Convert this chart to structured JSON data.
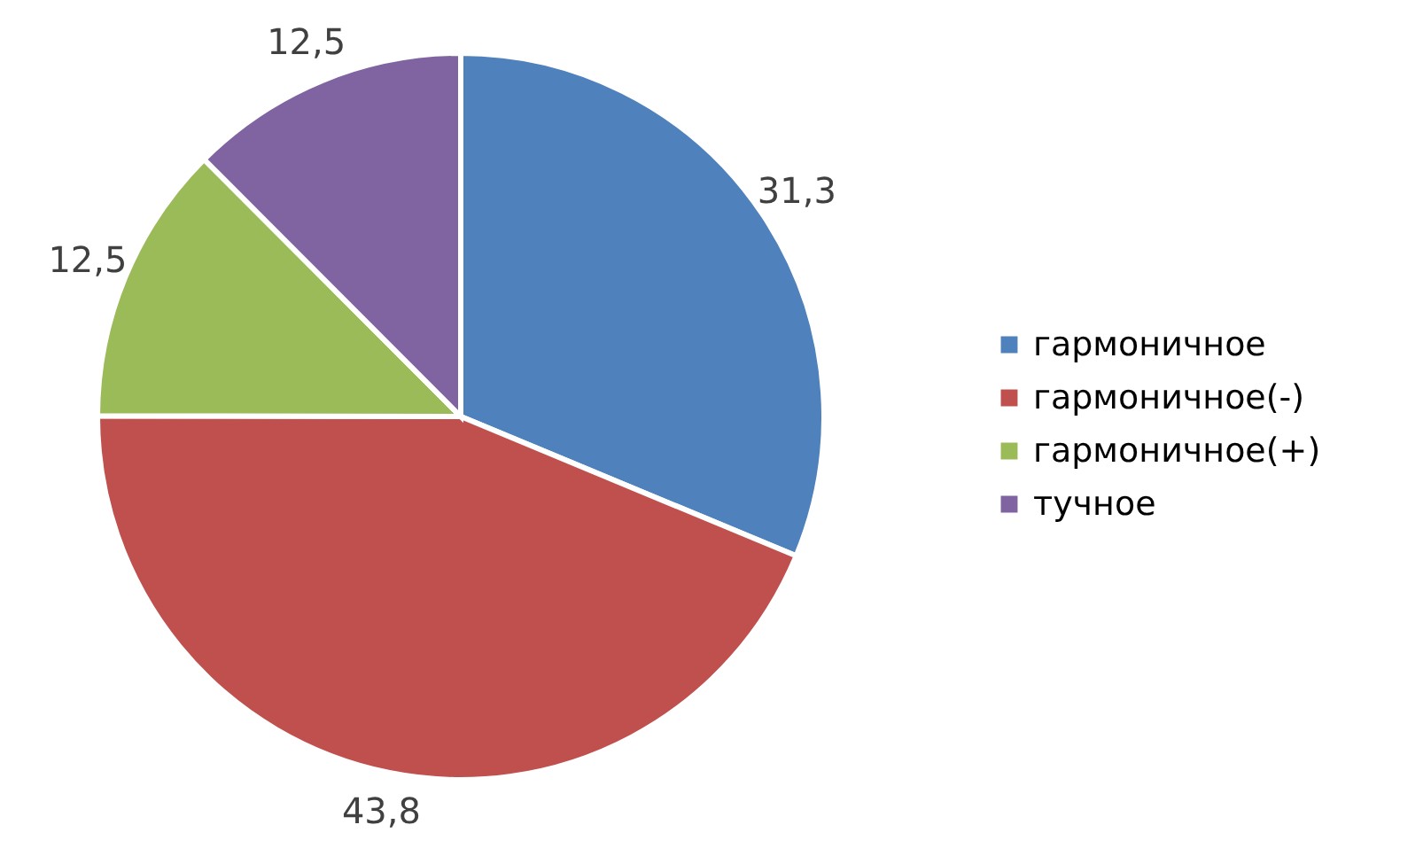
{
  "chart_data": {
    "type": "pie",
    "categories": [
      "гармоничное",
      "гармоничное(-)",
      "гармоничное(+)",
      "тучное"
    ],
    "values": [
      31.3,
      43.8,
      12.5,
      12.5
    ],
    "value_labels": [
      "31,3",
      "43,8",
      "12,5",
      "12,5"
    ],
    "colors": [
      "#4f81bd",
      "#c0504d",
      "#9bbb59",
      "#8064a2"
    ],
    "legend": "right"
  }
}
